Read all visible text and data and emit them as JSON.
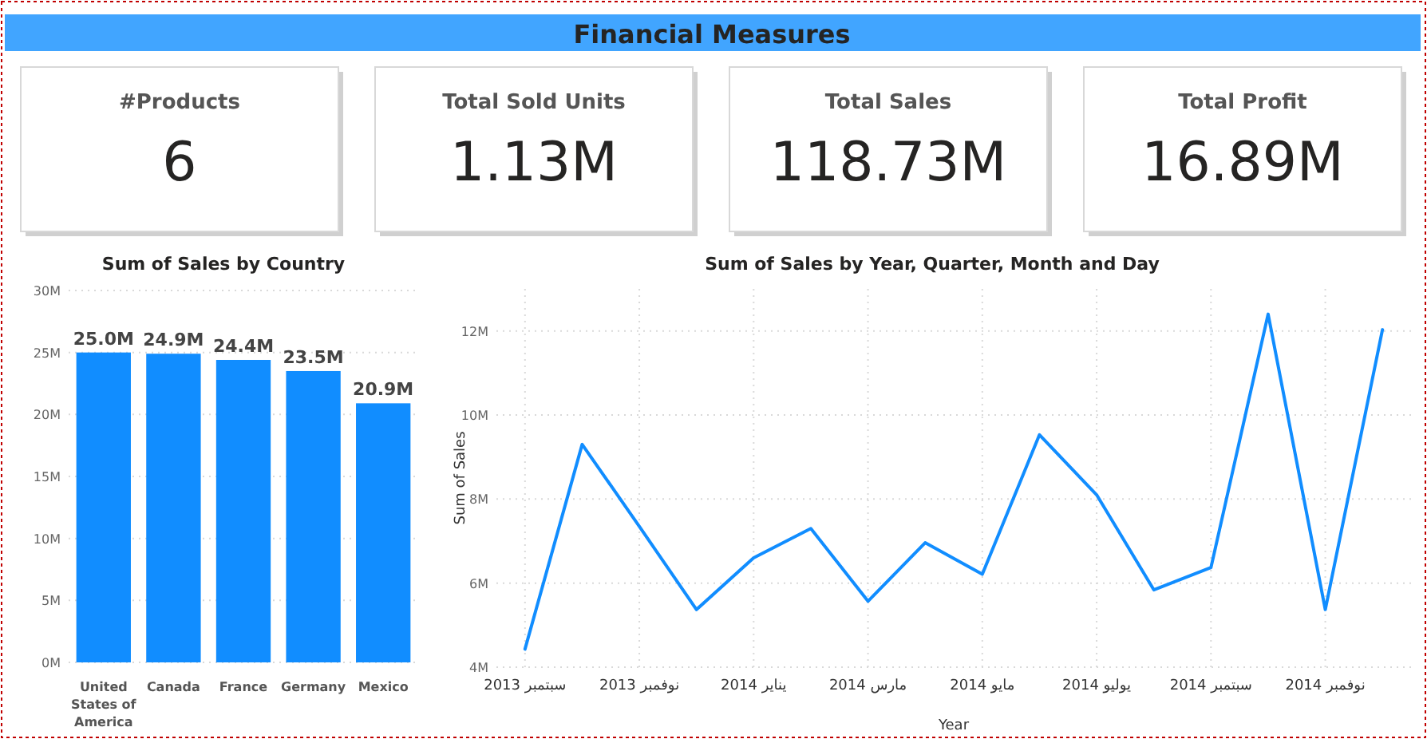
{
  "chart_data": [
    {
      "type": "other",
      "title": "Financial Measures",
      "categories": [
        "#Products",
        "Total Sold Units",
        "Total Sales",
        "Total Profit"
      ],
      "value_labels": [
        "6",
        "1.13M",
        "118.73M",
        "16.89M"
      ]
    },
    {
      "type": "bar",
      "title": "Sum of Sales by Country",
      "categories": [
        "United States of America",
        "Canada",
        "France",
        "Germany",
        "Mexico"
      ],
      "values": [
        25.0,
        24.9,
        24.4,
        23.5,
        20.9
      ],
      "value_labels": [
        "25.0M",
        "24.9M",
        "24.4M",
        "23.5M",
        "20.9M"
      ],
      "color": "#118dff",
      "ylim": [
        0,
        30
      ],
      "yticks": [
        {
          "value": 0,
          "label": "0M"
        },
        {
          "value": 5,
          "label": "5M"
        },
        {
          "value": 10,
          "label": "10M"
        },
        {
          "value": 15,
          "label": "15M"
        },
        {
          "value": 20,
          "label": "20M"
        },
        {
          "value": 25,
          "label": "25M"
        },
        {
          "value": 30,
          "label": "30M"
        }
      ],
      "grid": "y"
    },
    {
      "type": "line",
      "title": "Sum of Sales by Year, Quarter, Month and Day",
      "xlabel": "Year",
      "ylabel": "Sum of Sales",
      "categories": [
        "سبتمبر 2013",
        null,
        "نوفمبر 2013",
        null,
        "يناير 2014",
        null,
        "مارس 2014",
        null,
        "مايو 2014",
        null,
        "يوليو 2014",
        null,
        "سبتمبر 2014",
        null,
        "نوفمبر 2014",
        null
      ],
      "series": [
        {
          "color": "#118dff",
          "values": [
            4.43,
            9.3,
            7.35,
            5.37,
            6.6,
            7.3,
            5.57,
            6.96,
            6.21,
            9.53,
            8.1,
            5.84,
            6.37,
            12.4,
            5.37,
            12.03
          ]
        }
      ],
      "ylim": [
        4,
        13
      ],
      "yticks": [
        {
          "value": 4,
          "label": "4M"
        },
        {
          "value": 6,
          "label": "6M"
        },
        {
          "value": 8,
          "label": "8M"
        },
        {
          "value": 10,
          "label": "10M"
        },
        {
          "value": 12,
          "label": "12M"
        }
      ],
      "grid": true,
      "marker": "none",
      "line_style": "solid"
    }
  ]
}
